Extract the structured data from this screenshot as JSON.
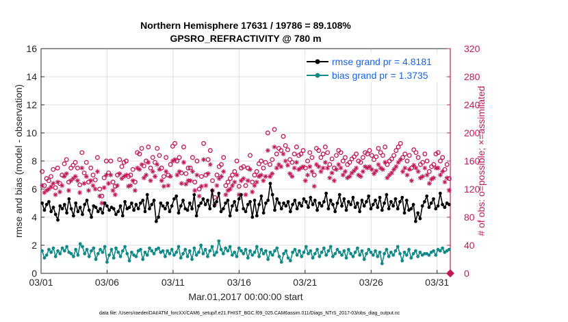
{
  "chart_data": {
    "type": "line",
    "title_line1": "Northern Hemisphere 17631 / 19786 = 89.108%",
    "title_line2": "GPSRO_REFRACTIVITY @ 780 m",
    "xlabel": "Mar.01,2017 00:00:00 start",
    "ylabel": "rmse and bias (model - observation)",
    "y2label": "# of obs: o=possible; ×=assimilated",
    "footnote": "data file: /Users/raeder/DAI/ATM_forcXX/CAM6_setup/f.e21.FHIST_BGC.f09_025.CAM6assim.011/Diags_NTrS_2017-03/obs_diag_output.nc",
    "x_ticks": [
      "03/01",
      "03/06",
      "03/11",
      "03/16",
      "03/21",
      "03/26",
      "03/31"
    ],
    "x_tick_days": [
      0,
      5,
      10,
      15,
      20,
      25,
      30
    ],
    "xlim": [
      0,
      31
    ],
    "ylim": [
      0,
      16
    ],
    "y_ticks": [
      "0",
      "2",
      "4",
      "6",
      "8",
      "10",
      "12",
      "14",
      "16"
    ],
    "y2lim": [
      0,
      320
    ],
    "y2_ticks": [
      "0",
      "40",
      "80",
      "120",
      "160",
      "200",
      "240",
      "280",
      "320"
    ],
    "grid": true,
    "legend_position": "top-right",
    "colors": {
      "rmse": "#000000",
      "bias": "#0f8a88",
      "obs": "#c2185b",
      "legend_text": "#1565e6",
      "grid": "#dddddd"
    },
    "series": [
      {
        "name": "rmse grand pr = 4.8181",
        "axis": "left",
        "marker": "dot",
        "values": [
          5.0,
          4.5,
          4.9,
          5.1,
          4.4,
          4.7,
          4.2,
          3.8,
          4.8,
          4.6,
          4.9,
          4.3,
          5.3,
          4.6,
          4.1,
          5.0,
          4.4,
          4.7,
          4.2,
          4.9,
          5.2,
          4.5,
          4.0,
          4.8,
          4.7,
          4.4,
          4.6,
          4.3,
          5.0,
          4.8,
          4.5,
          4.7,
          4.6,
          4.2,
          4.4,
          4.8,
          4.1,
          5.1,
          4.6,
          4.7,
          5.0,
          4.5,
          4.9,
          4.6,
          5.0,
          5.2,
          4.4,
          5.6,
          4.6,
          4.9,
          5.2,
          3.7,
          4.0,
          5.0,
          4.8,
          4.6,
          5.0,
          4.4,
          4.8,
          5.3,
          5.5,
          4.3,
          4.8,
          5.2,
          4.6,
          4.5,
          5.0,
          4.6,
          5.6,
          4.1,
          4.8,
          5.0,
          5.3,
          4.9,
          5.2,
          4.6,
          5.9,
          4.8,
          5.1,
          5.7,
          4.4,
          4.6,
          5.0,
          5.2,
          4.1,
          4.8,
          5.1,
          4.5,
          5.3,
          5.6,
          4.6,
          4.4,
          4.9,
          5.1,
          4.0,
          5.2,
          4.1,
          4.9,
          5.5,
          4.3,
          5.0,
          5.2,
          6.4,
          5.6,
          4.5,
          5.3,
          5.0,
          4.6,
          5.0,
          4.8,
          5.1,
          4.4,
          4.9,
          5.2,
          4.6,
          5.0,
          4.8,
          5.3,
          5.1,
          4.7,
          5.4,
          4.9,
          5.2,
          4.5,
          5.0,
          4.8,
          5.1,
          5.7,
          4.6,
          5.2,
          4.9,
          4.4,
          5.0,
          5.6,
          4.8,
          5.3,
          4.5,
          5.1,
          4.9,
          5.4,
          4.7,
          5.0,
          4.4,
          5.2,
          4.8,
          5.1,
          5.5,
          4.6,
          4.9,
          5.2,
          4.7,
          5.4,
          4.5,
          5.0,
          5.6,
          4.6,
          5.1,
          4.8,
          5.3,
          4.6,
          5.1,
          5.4,
          4.3,
          5.2,
          4.5,
          4.6,
          4.9,
          3.7,
          4.3,
          3.9,
          4.8,
          5.1,
          5.5,
          4.7,
          5.0,
          5.3,
          4.6,
          4.8,
          5.7,
          4.9,
          4.7,
          5.0,
          4.9
        ]
      },
      {
        "name": "bias grand pr = 1.3735",
        "axis": "left",
        "marker": "dot",
        "values": [
          1.6,
          1.1,
          1.3,
          1.7,
          1.5,
          1.8,
          1.2,
          1.6,
          1.4,
          1.8,
          1.6,
          1.9,
          1.5,
          1.4,
          1.2,
          1.7,
          1.3,
          2.1,
          1.9,
          1.4,
          1.7,
          1.2,
          1.6,
          1.8,
          1.0,
          1.4,
          1.7,
          1.5,
          1.9,
          0.8,
          1.3,
          1.7,
          1.1,
          1.8,
          1.5,
          1.2,
          1.6,
          1.9,
          1.4,
          0.9,
          1.5,
          1.3,
          1.2,
          1.6,
          1.7,
          1.0,
          1.5,
          1.3,
          1.8,
          1.6,
          1.4,
          1.7,
          1.8,
          1.5,
          1.6,
          1.2,
          1.6,
          1.4,
          1.7,
          1.3,
          1.5,
          1.9,
          1.1,
          1.4,
          1.7,
          1.2,
          1.6,
          1.0,
          1.8,
          1.3,
          1.5,
          2.0,
          1.4,
          1.7,
          1.2,
          1.6,
          1.9,
          1.3,
          1.5,
          2.3,
          1.7,
          1.4,
          1.8,
          1.6,
          1.9,
          1.3,
          1.5,
          1.2,
          1.8,
          1.6,
          1.4,
          1.7,
          1.1,
          1.6,
          1.3,
          1.5,
          1.9,
          1.2,
          1.7,
          1.4,
          1.6,
          1.0,
          1.5,
          1.3,
          1.6,
          1.8,
          1.2,
          0.8,
          1.4,
          1.6,
          1.1,
          0.9,
          1.5,
          1.7,
          1.3,
          1.6,
          1.2,
          1.5,
          1.9,
          1.4,
          1.6,
          1.1,
          1.4,
          1.7,
          1.2,
          1.5,
          1.8,
          1.3,
          1.6,
          1.9,
          1.2,
          1.4,
          1.7,
          1.5,
          1.3,
          1.6,
          1.1,
          1.7,
          1.4,
          1.2,
          1.5,
          1.8,
          1.3,
          1.6,
          1.0,
          1.4,
          1.7,
          1.5,
          1.3,
          1.6,
          1.2,
          1.5,
          0.7,
          1.4,
          1.7,
          1.2,
          1.5,
          1.3,
          1.6,
          1.9,
          1.4,
          0.9,
          1.5,
          1.3,
          1.7,
          1.1,
          1.4,
          1.6,
          1.2,
          1.5,
          1.3,
          1.4,
          1.4,
          1.3,
          1.5,
          1.6,
          1.3,
          1.7,
          1.6,
          1.8,
          1.5,
          1.6,
          1.7
        ]
      },
      {
        "name": "possible obs",
        "axis": "right",
        "marker": "circle",
        "values": [
          145,
          125,
          135,
          132,
          138,
          148,
          122,
          150,
          128,
          140,
          156,
          162,
          130,
          150,
          154,
          158,
          150,
          126,
          172,
          143,
          158,
          130,
          150,
          140,
          133,
          165,
          120,
          110,
          136,
          160,
          143,
          160,
          130,
          124,
          140,
          162,
          152,
          158,
          160,
          138,
          140,
          148,
          130,
          172,
          170,
          178,
          153,
          160,
          180,
          150,
          165,
          158,
          178,
          168,
          150,
          138,
          165,
          140,
          155,
          181,
          185,
          160,
          165,
          143,
          180,
          142,
          150,
          150,
          165,
          130,
          160,
          120,
          138,
          185,
          140,
          162,
          175,
          132,
          108,
          140,
          152,
          155,
          165,
          125,
          130,
          135,
          140,
          145,
          160,
          124,
          150,
          152,
          125,
          150,
          168,
          130,
          140,
          145,
          156,
          160,
          150,
          158,
          200,
          155,
          162,
          205,
          170,
          178,
          175,
          195,
          182,
          176,
          162,
          158,
          170,
          180,
          168,
          170,
          175,
          150,
          160,
          172,
          165,
          140,
          178,
          175,
          165,
          170,
          180,
          172,
          155,
          163,
          150,
          168,
          175,
          172,
          160,
          165,
          155,
          158,
          163,
          166,
          170,
          160,
          158,
          165,
          172,
          170,
          175,
          168,
          162,
          166,
          178,
          172,
          168,
          180,
          155,
          160,
          163,
          168,
          175,
          180,
          185,
          165,
          170,
          160,
          168,
          150,
          176,
          172,
          165,
          155,
          158,
          170,
          160,
          145,
          152,
          155,
          170,
          172,
          160,
          165,
          148,
          155,
          135
        ]
      },
      {
        "name": "assimilated obs",
        "axis": "right",
        "marker": "asterisk",
        "values": [
          125,
          115,
          118,
          120,
          123,
          128,
          112,
          130,
          116,
          125,
          138,
          142,
          118,
          132,
          135,
          138,
          132,
          115,
          150,
          128,
          138,
          118,
          132,
          125,
          120,
          145,
          110,
          100,
          122,
          140,
          128,
          140,
          118,
          112,
          125,
          142,
          135,
          138,
          140,
          124,
          125,
          132,
          118,
          150,
          148,
          155,
          136,
          140,
          158,
          132,
          145,
          138,
          155,
          148,
          132,
          124,
          145,
          125,
          138,
          160,
          162,
          140,
          145,
          128,
          158,
          127,
          132,
          132,
          145,
          118,
          140,
          110,
          124,
          162,
          125,
          142,
          155,
          118,
          98,
          125,
          135,
          138,
          145,
          112,
          118,
          120,
          125,
          130,
          140,
          112,
          132,
          135,
          112,
          132,
          148,
          116,
          125,
          130,
          138,
          140,
          132,
          138,
          175,
          138,
          142,
          180,
          150,
          155,
          152,
          170,
          160,
          154,
          142,
          138,
          150,
          158,
          148,
          150,
          152,
          132,
          140,
          152,
          145,
          124,
          155,
          152,
          145,
          150,
          158,
          150,
          136,
          143,
          132,
          148,
          155,
          150,
          140,
          145,
          136,
          138,
          143,
          146,
          150,
          140,
          138,
          145,
          152,
          150,
          152,
          148,
          142,
          146,
          155,
          150,
          148,
          158,
          136,
          140,
          143,
          148,
          152,
          158,
          162,
          145,
          150,
          140,
          148,
          132,
          154,
          150,
          145,
          136,
          138,
          150,
          140,
          128,
          134,
          136,
          150,
          150,
          140,
          145,
          130,
          136,
          118
        ]
      }
    ]
  }
}
